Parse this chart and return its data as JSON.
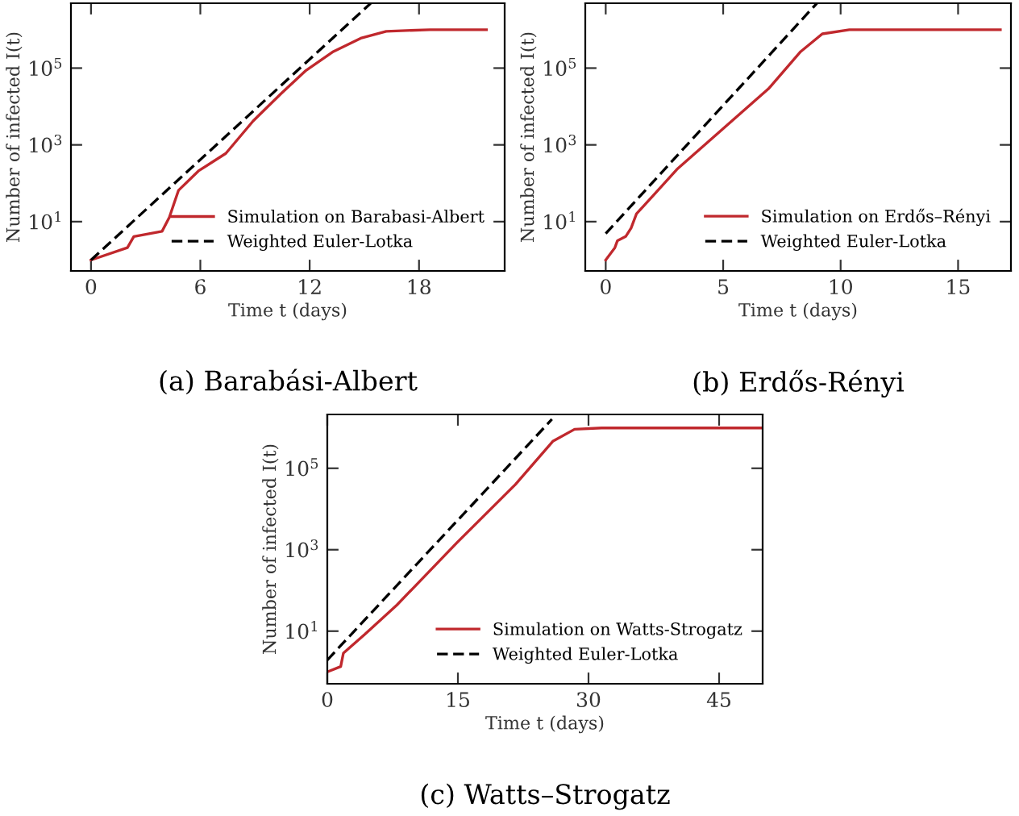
{
  "chart_data": [
    {
      "type": "line",
      "title": "(a) Barabási-Albert",
      "xlabel": "Time t (days)",
      "ylabel": "Number of infected I(t)",
      "log": "y",
      "xlim": [
        -1.1,
        22.7
      ],
      "xticks": [
        0,
        6,
        12,
        18
      ],
      "ylim": [
        0.52,
        4900000
      ],
      "yticks": [
        {
          "value": 10,
          "label": "10$^{1}$"
        },
        {
          "value": 1000,
          "label": "10$^{3}$"
        },
        {
          "value": 100000,
          "label": "10$^{5}$"
        }
      ],
      "grid": false,
      "legend": "lower right",
      "series": [
        {
          "name": "Simulation on Barabasi-Albert",
          "color": "#c0282d",
          "line_style": "solid",
          "x": [
            0,
            2,
            2.35,
            3.9,
            4.3,
            4.8,
            5.9,
            7.4,
            8.9,
            10.4,
            11.8,
            13.3,
            14.8,
            16.2,
            18.6,
            21.7
          ],
          "values": [
            1,
            2.1,
            4.1,
            5.6,
            13,
            65,
            210,
            600,
            4200,
            21000,
            87000,
            270000,
            600000,
            910000,
            1000000,
            1000000
          ]
        },
        {
          "name": "Weighted Euler-Lotka",
          "color": "#000000",
          "line_style": "dashed",
          "x": [
            0,
            15.35
          ],
          "values": [
            1,
            4900000
          ]
        }
      ]
    },
    {
      "type": "line",
      "title": "(b) Erdős-Rényi",
      "xlabel": "Time t (days)",
      "ylabel": "Number of infected I(t)",
      "log": "y",
      "xlim": [
        -0.87,
        17.25
      ],
      "xticks": [
        0,
        5,
        10,
        15
      ],
      "ylim": [
        0.52,
        4900000
      ],
      "yticks": [
        {
          "value": 10,
          "label": "10$^{1}$"
        },
        {
          "value": 1000,
          "label": "10$^{3}$"
        },
        {
          "value": 100000,
          "label": "10$^{5}$"
        }
      ],
      "grid": false,
      "legend": "lower right",
      "series": [
        {
          "name": "Simulation on Erdős–Rényi",
          "color": "#c0282d",
          "line_style": "solid",
          "x": [
            0,
            0.39,
            0.5,
            0.85,
            1.08,
            1.31,
            2.22,
            3.03,
            4.98,
            6.93,
            8.3,
            9.22,
            10.37,
            16.8
          ],
          "values": [
            1,
            2.1,
            3.2,
            4.1,
            6.8,
            16,
            65,
            230,
            2600,
            29000,
            270000,
            780000,
            1000000,
            1000000
          ]
        },
        {
          "name": "Weighted Euler-Lotka",
          "color": "#000000",
          "line_style": "dashed",
          "x": [
            0,
            8.99
          ],
          "values": [
            4.9,
            4900000
          ]
        }
      ]
    },
    {
      "type": "line",
      "title": "(c) Watts–Strogatz",
      "xlabel": "Time t (days)",
      "ylabel": "Number of infected I(t)",
      "log": "y",
      "xlim": [
        0,
        50
      ],
      "xticks": [
        0,
        15,
        30,
        45
      ],
      "ylim": [
        0.51,
        2100000
      ],
      "yticks": [
        {
          "value": 10,
          "label": "10$^{1}$"
        },
        {
          "value": 1000,
          "label": "10$^{3}$"
        },
        {
          "value": 100000,
          "label": "10$^{5}$"
        }
      ],
      "grid": false,
      "legend": "lower right",
      "series": [
        {
          "name": "Simulation on Watts-Strogatz",
          "color": "#c0282d",
          "line_style": "solid",
          "x": [
            0,
            1.54,
            1.85,
            4.3,
            8.0,
            14.9,
            21.6,
            25.9,
            28.4,
            31.5,
            50
          ],
          "values": [
            1,
            1.35,
            2.9,
            8.3,
            44,
            1500,
            40000,
            460000,
            910000,
            980000,
            980000
          ]
        },
        {
          "name": "Weighted Euler-Lotka",
          "color": "#000000",
          "line_style": "dashed",
          "x": [
            0,
            25.8
          ],
          "values": [
            1.95,
            1600000
          ]
        }
      ]
    }
  ]
}
